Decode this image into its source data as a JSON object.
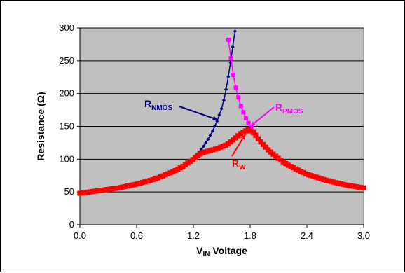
{
  "chart_data": {
    "type": "line",
    "xlabel": {
      "main": "V",
      "sub": "IN",
      "rest": " Voltage"
    },
    "ylabel": "Resistance (Ω)",
    "xlim": [
      0,
      3
    ],
    "ylim": [
      0,
      300
    ],
    "x_ticks": [
      "0.0",
      "0.6",
      "1.2",
      "1.8",
      "2.4",
      "3.0"
    ],
    "y_ticks": [
      "0",
      "50",
      "100",
      "150",
      "200",
      "250",
      "300"
    ],
    "grid": "horizontal",
    "plot_background": "#c0c0c0",
    "series": [
      {
        "name": "R_NMOS",
        "color": "#000080",
        "marker": "diamond",
        "x": [
          0.0,
          0.2,
          0.4,
          0.6,
          0.8,
          1.0,
          1.1,
          1.2,
          1.25,
          1.3,
          1.35,
          1.4,
          1.45,
          1.5,
          1.53,
          1.56,
          1.59,
          1.62,
          1.64
        ],
        "y": [
          48,
          52,
          56,
          62,
          70,
          83,
          91,
          102,
          109,
          118,
          129,
          142,
          158,
          178,
          195,
          218,
          245,
          275,
          295
        ]
      },
      {
        "name": "R_PMOS",
        "color": "#ff00ff",
        "marker": "square",
        "x": [
          1.57,
          1.6,
          1.63,
          1.66,
          1.7,
          1.75,
          1.8,
          1.9,
          2.0,
          2.1,
          2.2,
          2.4,
          2.6,
          2.8,
          3.0
        ],
        "y": [
          282,
          250,
          222,
          202,
          182,
          164,
          150,
          129,
          113,
          101,
          91,
          77,
          68,
          61,
          57
        ]
      },
      {
        "name": "R_W",
        "color": "#ff0000",
        "marker": "square",
        "x": [
          0.0,
          0.2,
          0.4,
          0.6,
          0.8,
          1.0,
          1.1,
          1.2,
          1.25,
          1.3,
          1.35,
          1.4,
          1.45,
          1.5,
          1.55,
          1.6,
          1.65,
          1.7,
          1.75,
          1.78,
          1.82,
          1.86,
          1.9,
          2.0,
          2.1,
          2.2,
          2.4,
          2.6,
          2.8,
          3.0
        ],
        "y": [
          48,
          52,
          56,
          62,
          70,
          82,
          90,
          100,
          106,
          110,
          112,
          114,
          116,
          119,
          122,
          127,
          133,
          139,
          143,
          145,
          142,
          136,
          128,
          113,
          101,
          91,
          77,
          68,
          61,
          56
        ]
      }
    ],
    "annotations": [
      {
        "main": "R",
        "sub": "NMOS",
        "color": "#000080",
        "target": [
          1.46,
          160
        ]
      },
      {
        "main": "R",
        "sub": "PMOS",
        "color": "#ff00ff",
        "target": [
          1.8,
          150
        ]
      },
      {
        "main": "R",
        "sub": "W",
        "color": "#ff0000",
        "target": [
          1.75,
          138
        ]
      }
    ]
  }
}
